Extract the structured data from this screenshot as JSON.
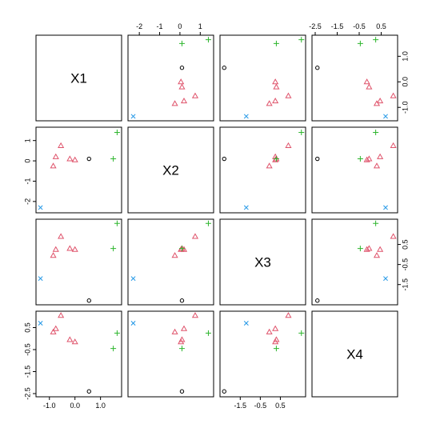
{
  "chart_data": {
    "type": "scatter",
    "variables": [
      "X1",
      "X2",
      "X3",
      "X4"
    ],
    "groups": [
      {
        "marker": "circle",
        "color": "#000000"
      },
      {
        "marker": "triangle",
        "color": "#DF536B"
      },
      {
        "marker": "plus",
        "color": "#2DB52D"
      },
      {
        "marker": "x",
        "color": "#2297E6"
      }
    ],
    "points": [
      {
        "group": 0,
        "X1": 0.55,
        "X2": 0.1,
        "X3": -2.3,
        "X4": -2.4
      },
      {
        "group": 1,
        "X1": -0.55,
        "X2": 0.75,
        "X3": 0.9,
        "X4": 1.05
      },
      {
        "group": 1,
        "X1": -0.75,
        "X2": 0.2,
        "X3": 0.25,
        "X4": 0.45
      },
      {
        "group": 1,
        "X1": -0.85,
        "X2": -0.25,
        "X3": -0.05,
        "X4": 0.3
      },
      {
        "group": 1,
        "X1": -0.2,
        "X2": 0.1,
        "X3": 0.3,
        "X4": -0.05
      },
      {
        "group": 1,
        "X1": 0.0,
        "X2": 0.05,
        "X3": 0.25,
        "X4": -0.15
      },
      {
        "group": 2,
        "X1": 1.65,
        "X2": 1.4,
        "X3": 1.55,
        "X4": 0.25
      },
      {
        "group": 2,
        "X1": 1.5,
        "X2": 0.1,
        "X3": 0.3,
        "X4": -0.45
      },
      {
        "group": 3,
        "X1": -1.35,
        "X2": -2.3,
        "X3": -1.2,
        "X4": 0.7
      },
      {
        "group": 3,
        "X1": null,
        "X2": null,
        "X3": null,
        "X4": null
      }
    ],
    "axes": {
      "X1": {
        "range": [
          -1.4,
          1.7
        ],
        "ticks": [
          -1.0,
          0.0,
          1.0
        ],
        "tick_labels": [
          "-1.0",
          "0.0",
          "1.0"
        ]
      },
      "X2": {
        "range": [
          -2.4,
          1.5
        ],
        "ticks": [
          -2,
          -1,
          0,
          1
        ],
        "tick_labels": [
          "-2",
          "-1",
          "0",
          "1"
        ]
      },
      "X3": {
        "range": [
          -2.35,
          1.6
        ],
        "ticks": [
          -1.5,
          -0.5,
          0.5
        ],
        "tick_labels": [
          "-1.5",
          "-0.5",
          "0.5"
        ]
      },
      "X4": {
        "range": [
          -2.5,
          1.1
        ],
        "ticks": [
          -2.5,
          -1.5,
          -0.5,
          0.5
        ],
        "tick_labels": [
          "-2.5",
          "-1.5",
          "-0.5",
          "0.5"
        ]
      }
    }
  }
}
